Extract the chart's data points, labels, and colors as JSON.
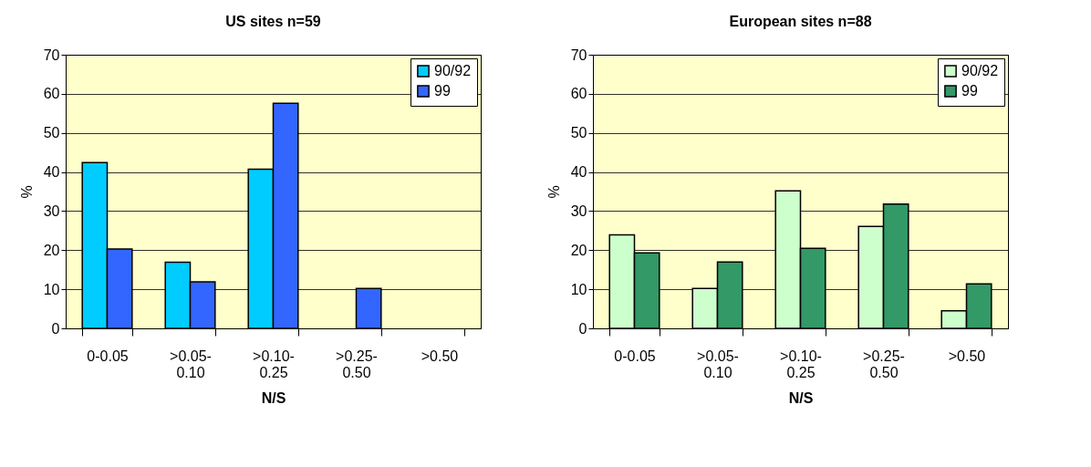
{
  "chart_data": [
    {
      "type": "bar",
      "title": "US sites  n=59",
      "xlabel": "N/S",
      "ylabel": "%",
      "categories": [
        "0-0.05",
        ">0.05-\n0.10",
        ">0.10-\n0.25",
        ">0.25-\n0.50",
        ">0.50"
      ],
      "series": [
        {
          "name": "90/92",
          "color": "#00ccff",
          "values": [
            42.4,
            16.9,
            40.7,
            null,
            null
          ]
        },
        {
          "name": "99",
          "color": "#3366ff",
          "values": [
            20.3,
            11.9,
            57.6,
            10.2,
            null
          ]
        }
      ],
      "ylim": [
        0,
        70
      ],
      "yticks": [
        0,
        10,
        20,
        30,
        40,
        50,
        60,
        70
      ],
      "grid": "y",
      "legend": "top right"
    },
    {
      "type": "bar",
      "title": "European sites  n=88",
      "xlabel": "N/S",
      "ylabel": "%",
      "categories": [
        "0-0.05",
        ">0.05-\n0.10",
        ">0.10-\n0.25",
        ">0.25-\n0.50",
        ">0.50"
      ],
      "series": [
        {
          "name": "90/92",
          "color": "#ccffcc",
          "values": [
            23.9,
            10.2,
            35.2,
            26.1,
            4.5
          ]
        },
        {
          "name": "99",
          "color": "#339966",
          "values": [
            19.3,
            17.0,
            20.5,
            31.8,
            11.4
          ]
        }
      ],
      "ylim": [
        0,
        70
      ],
      "yticks": [
        0,
        10,
        20,
        30,
        40,
        50,
        60,
        70
      ],
      "grid": "y",
      "legend": "top right"
    }
  ]
}
